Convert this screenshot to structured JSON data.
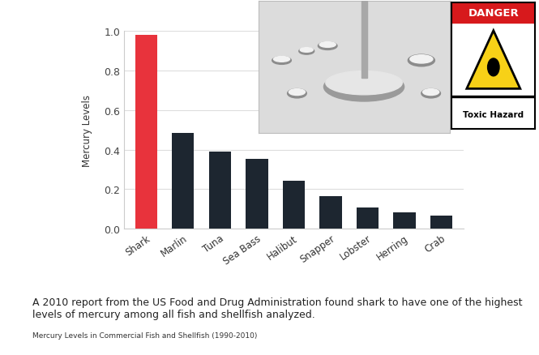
{
  "chart_data": {
    "type": "bar",
    "categories": [
      "Shark",
      "Marlin",
      "Tuna",
      "Sea Bass",
      "Halibut",
      "Snapper",
      "Lobster",
      "Herring",
      "Crab"
    ],
    "values": [
      0.979,
      0.485,
      0.391,
      0.354,
      0.241,
      0.166,
      0.107,
      0.084,
      0.065
    ],
    "colors": [
      "#e8333c",
      "#1d2630",
      "#1d2630",
      "#1d2630",
      "#1d2630",
      "#1d2630",
      "#1d2630",
      "#1d2630",
      "#1d2630"
    ],
    "ylabel": "Mercury Levels",
    "ylim": [
      0,
      1.0
    ],
    "yticks": [
      {
        "value": 0,
        "label": "0.0"
      },
      {
        "value": 0.2,
        "label": "0.2"
      },
      {
        "value": 0.4,
        "label": "0.4"
      },
      {
        "value": 0.6,
        "label": "0.6"
      },
      {
        "value": 0.8,
        "label": "0.8"
      },
      {
        "value": 1.0,
        "label": "1.0"
      }
    ],
    "grid": true
  },
  "caption": "A 2010 report from the US Food and Drug Administration found shark to have one of the highest levels of mercury among all fish and shellfish analyzed.",
  "source": "Mercury Levels in Commercial Fish and Shellfish (1990-2010)",
  "sign": {
    "header": "DANGER",
    "text": "Toxic Hazard"
  }
}
